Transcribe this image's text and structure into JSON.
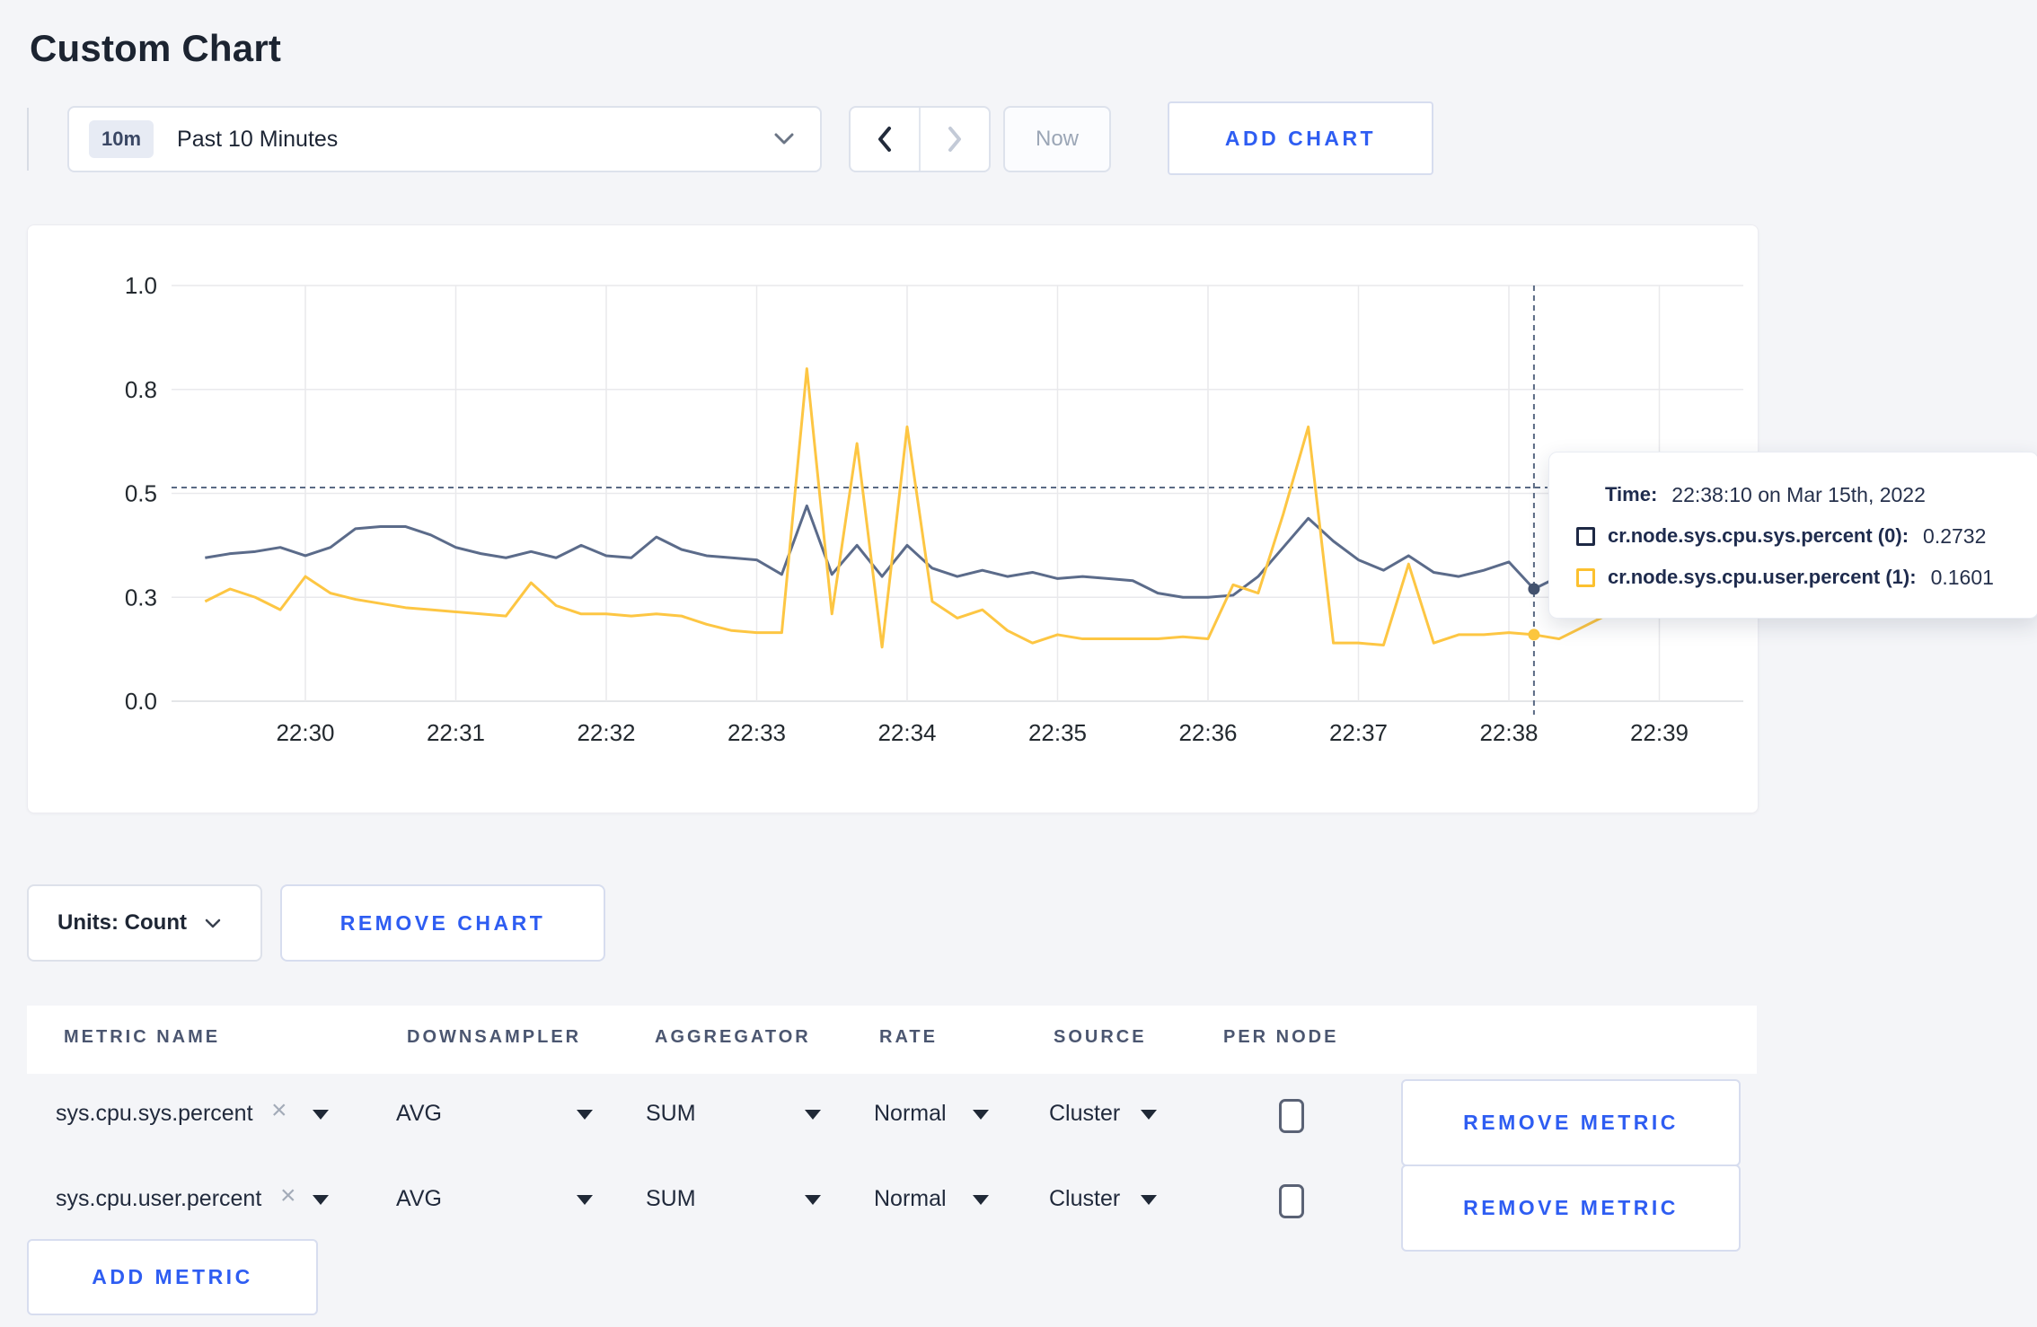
{
  "page": {
    "title": "Custom Chart",
    "background": "#f4f5f8",
    "accent_blue": "#2e5df2"
  },
  "toolbar": {
    "time_range": {
      "badge": "10m",
      "label": "Past 10 Minutes"
    },
    "now_label": "Now",
    "add_chart_label": "ADD CHART"
  },
  "chart_data": {
    "type": "line",
    "x_ticks": [
      "22:30",
      "22:31",
      "22:32",
      "22:33",
      "22:34",
      "22:35",
      "22:36",
      "22:37",
      "22:38",
      "22:39"
    ],
    "y_ticks": {
      "values": [
        0,
        0.25,
        0.5,
        0.75,
        1.0
      ],
      "labels": [
        "0.0",
        "0.3",
        "0.5",
        "0.8",
        "1.0"
      ]
    },
    "ylim": [
      0,
      1
    ],
    "grid": true,
    "start_offset_seconds": -40,
    "step_seconds": 10,
    "series": [
      {
        "name": "cr.node.sys.cpu.sys.percent",
        "color": "#5b6b8a",
        "values": [
          0.345,
          0.355,
          0.36,
          0.37,
          0.35,
          0.37,
          0.415,
          0.42,
          0.42,
          0.4,
          0.37,
          0.355,
          0.345,
          0.36,
          0.345,
          0.375,
          0.35,
          0.345,
          0.395,
          0.365,
          0.35,
          0.345,
          0.34,
          0.305,
          0.47,
          0.305,
          0.375,
          0.3,
          0.375,
          0.32,
          0.3,
          0.315,
          0.3,
          0.31,
          0.295,
          0.3,
          0.295,
          0.29,
          0.26,
          0.25,
          0.25,
          0.255,
          0.3,
          0.37,
          0.44,
          0.385,
          0.34,
          0.315,
          0.35,
          0.31,
          0.3,
          0.315,
          0.335,
          0.27,
          0.3,
          0.29,
          0.3,
          0.285,
          0.27
        ]
      },
      {
        "name": "cr.node.sys.cpu.user.percent",
        "color": "#fdc643",
        "values": [
          0.24,
          0.27,
          0.25,
          0.22,
          0.3,
          0.26,
          0.245,
          0.235,
          0.225,
          0.22,
          0.215,
          0.21,
          0.205,
          0.285,
          0.23,
          0.21,
          0.21,
          0.205,
          0.21,
          0.205,
          0.185,
          0.17,
          0.165,
          0.165,
          0.8,
          0.21,
          0.62,
          0.13,
          0.66,
          0.24,
          0.2,
          0.22,
          0.17,
          0.14,
          0.16,
          0.15,
          0.15,
          0.15,
          0.15,
          0.155,
          0.15,
          0.28,
          0.26,
          0.45,
          0.66,
          0.14,
          0.14,
          0.135,
          0.33,
          0.14,
          0.16,
          0.16,
          0.165,
          0.16,
          0.15,
          0.18,
          0.21,
          0.22,
          0.27
        ]
      }
    ],
    "crosshair": {
      "hover_index": 53,
      "hline_value": 0.514,
      "sys_value": 0.2732,
      "user_value": 0.1601
    }
  },
  "tooltip": {
    "time_label": "Time:",
    "time_value": "22:38:10 on Mar 15th, 2022",
    "entries": [
      {
        "swatch_color": "#1e2945",
        "label": "cr.node.sys.cpu.sys.percent (0):",
        "value": "0.2732"
      },
      {
        "swatch_color": "#fcc12f",
        "label": "cr.node.sys.cpu.user.percent (1):",
        "value": "0.1601"
      }
    ]
  },
  "chart_controls": {
    "units_label": "Units: Count",
    "remove_chart_label": "REMOVE CHART"
  },
  "metrics_table": {
    "headers": [
      "METRIC NAME",
      "DOWNSAMPLER",
      "AGGREGATOR",
      "RATE",
      "SOURCE",
      "PER NODE"
    ],
    "remove_icon": "×",
    "rows": [
      {
        "name": "sys.cpu.sys.percent",
        "downsampler": "AVG",
        "aggregator": "SUM",
        "rate": "Normal",
        "source": "Cluster",
        "per_node_checked": false
      },
      {
        "name": "sys.cpu.user.percent",
        "downsampler": "AVG",
        "aggregator": "SUM",
        "rate": "Normal",
        "source": "Cluster",
        "per_node_checked": false
      }
    ],
    "remove_metric_label": "REMOVE METRIC",
    "add_metric_label": "ADD METRIC"
  }
}
